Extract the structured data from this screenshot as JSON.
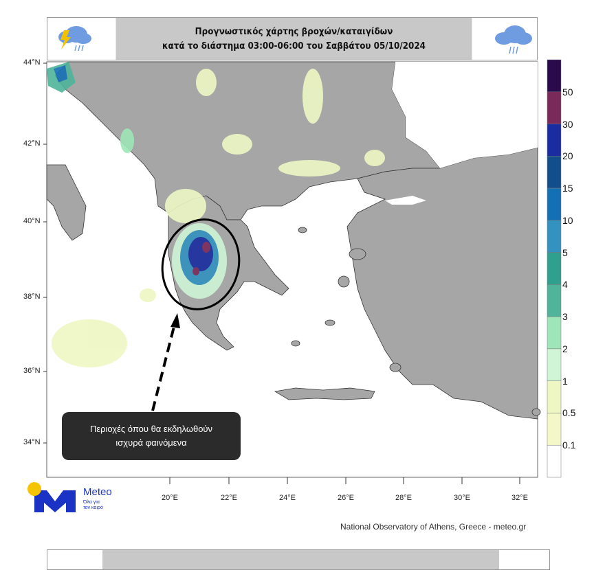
{
  "title": {
    "line1": "Προγνωστικός χάρτης βροχών/καταιγίδων",
    "line2": "κατά το διάστημα 03:00-06:00 του Σαββάτου 05/10/2024",
    "left_icon": "thunderstorm-cloud-icon",
    "right_icon": "rain-cloud-icon"
  },
  "axes": {
    "lat_labels": [
      "44°N",
      "42°N",
      "40°N",
      "38°N",
      "36°N",
      "34°N"
    ],
    "lon_labels": [
      "20°E",
      "22°E",
      "24°E",
      "26°E",
      "28°E",
      "30°E",
      "32°E"
    ]
  },
  "legend": {
    "labels": [
      "50",
      "30",
      "20",
      "15",
      "10",
      "5",
      "4",
      "3",
      "2",
      "1",
      "0.5",
      "0.1"
    ],
    "colors": [
      "#2a0a4a",
      "#7a2a5a",
      "#1a2ca0",
      "#134e8c",
      "#1470b4",
      "#3392c0",
      "#2f9f8e",
      "#4fb49a",
      "#9ee6b8",
      "#cff5d6",
      "#eef7c4",
      "#f4f8c8",
      "#ffffff"
    ]
  },
  "map_colors": {
    "land": "#a6a6a6",
    "sea": "#ffffff",
    "borders": "#333333"
  },
  "annotation": {
    "line1": "Περιοχές όπου θα εκδηλωθούν",
    "line2": "ισχυρά φαινόμενα"
  },
  "logo": {
    "name": "Meteo",
    "tagline1": "Όλα για",
    "tagline2": "τον καιρό"
  },
  "credit": "National Observatory of Athens, Greece - meteo.gr"
}
